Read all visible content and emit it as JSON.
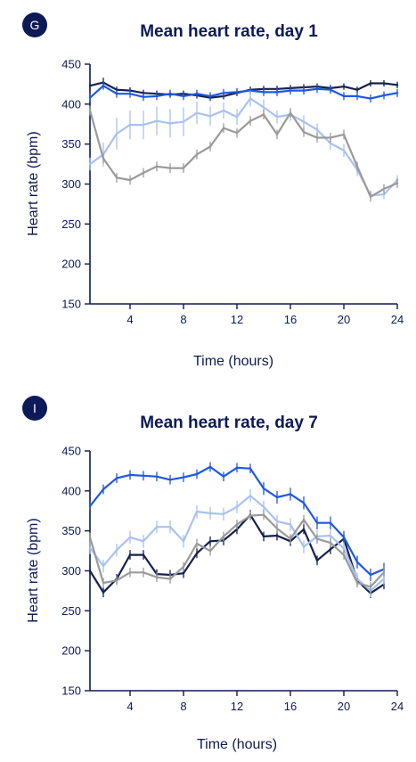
{
  "colors": {
    "axis": "#0d1a57",
    "navy": "#14214f",
    "blue": "#1f57e0",
    "light_blue": "#a9c1f2",
    "gray": "#9a9a9a"
  },
  "chart_data": [
    {
      "panel": "G",
      "type": "line",
      "title": "Mean heart rate, day 1",
      "xlabel": "Time (hours)",
      "ylabel": "Heart rate (bpm)",
      "xlim": [
        1,
        24
      ],
      "ylim": [
        150,
        450
      ],
      "xticks": [
        4,
        8,
        12,
        16,
        20,
        24
      ],
      "yticks": [
        150,
        200,
        250,
        300,
        350,
        400,
        450
      ],
      "x": [
        1,
        2,
        3,
        4,
        5,
        6,
        7,
        8,
        9,
        10,
        11,
        12,
        13,
        14,
        15,
        16,
        17,
        18,
        19,
        20,
        21,
        22,
        23,
        24
      ],
      "series": [
        {
          "color": "#14214f",
          "values": [
            423,
            427,
            418,
            417,
            414,
            413,
            412,
            413,
            411,
            408,
            410,
            414,
            418,
            419,
            419,
            420,
            421,
            422,
            420,
            422,
            418,
            426,
            426,
            424
          ],
          "err": [
            4,
            6,
            4,
            4,
            4,
            4,
            4,
            4,
            4,
            4,
            4,
            4,
            4,
            4,
            4,
            4,
            4,
            4,
            4,
            4,
            4,
            4,
            4,
            4
          ]
        },
        {
          "color": "#1f57e0",
          "values": [
            408,
            423,
            413,
            413,
            409,
            410,
            413,
            410,
            413,
            410,
            414,
            415,
            417,
            415,
            415,
            417,
            417,
            419,
            418,
            410,
            410,
            407,
            411,
            414
          ],
          "err": [
            5,
            5,
            5,
            5,
            5,
            5,
            5,
            5,
            5,
            5,
            5,
            5,
            5,
            5,
            5,
            5,
            5,
            5,
            5,
            5,
            5,
            5,
            5,
            5
          ]
        },
        {
          "color": "#a9c1f2",
          "values": [
            325,
            337,
            363,
            374,
            374,
            379,
            376,
            378,
            389,
            385,
            392,
            384,
            407,
            396,
            384,
            387,
            378,
            368,
            351,
            342,
            318,
            286,
            287,
            305
          ],
          "err": [
            8,
            15,
            20,
            18,
            18,
            18,
            18,
            18,
            14,
            12,
            10,
            10,
            10,
            10,
            8,
            8,
            8,
            8,
            8,
            8,
            8,
            6,
            6,
            6
          ]
        },
        {
          "color": "#9a9a9a",
          "values": [
            392,
            332,
            308,
            305,
            314,
            322,
            320,
            320,
            337,
            347,
            370,
            364,
            379,
            387,
            362,
            389,
            365,
            358,
            358,
            362,
            322,
            284,
            294,
            301
          ],
          "err": [
            6,
            6,
            6,
            6,
            6,
            6,
            6,
            6,
            6,
            6,
            6,
            6,
            6,
            6,
            6,
            6,
            6,
            6,
            6,
            6,
            6,
            6,
            6,
            6
          ]
        }
      ]
    },
    {
      "panel": "I",
      "type": "line",
      "title": "Mean heart rate, day 7",
      "xlabel": "Time (hours)",
      "ylabel": "Heart rate (bpm)",
      "xlim": [
        1,
        24
      ],
      "ylim": [
        150,
        450
      ],
      "xticks": [
        4,
        8,
        12,
        16,
        20,
        24
      ],
      "yticks": [
        150,
        200,
        250,
        300,
        350,
        400,
        450
      ],
      "x": [
        1,
        2,
        3,
        4,
        5,
        6,
        7,
        8,
        9,
        10,
        11,
        12,
        13,
        14,
        15,
        16,
        17,
        18,
        19,
        20,
        21,
        22,
        23
      ],
      "series": [
        {
          "color": "#14214f",
          "values": [
            300,
            273,
            290,
            320,
            320,
            296,
            295,
            297,
            322,
            337,
            338,
            352,
            370,
            343,
            344,
            337,
            352,
            313,
            327,
            340,
            288,
            272,
            283
          ],
          "err": [
            6,
            6,
            6,
            6,
            6,
            6,
            6,
            6,
            6,
            6,
            6,
            6,
            6,
            6,
            6,
            6,
            6,
            6,
            6,
            6,
            6,
            6,
            6
          ]
        },
        {
          "color": "#1f57e0",
          "values": [
            381,
            402,
            416,
            420,
            419,
            418,
            414,
            417,
            421,
            430,
            418,
            429,
            428,
            403,
            392,
            396,
            385,
            360,
            360,
            342,
            311,
            295,
            302
          ],
          "err": [
            5,
            6,
            6,
            6,
            6,
            6,
            6,
            6,
            6,
            6,
            6,
            6,
            6,
            8,
            8,
            8,
            8,
            8,
            8,
            8,
            8,
            8,
            8
          ]
        },
        {
          "color": "#a9c1f2",
          "values": [
            329,
            306,
            326,
            342,
            337,
            355,
            355,
            337,
            374,
            372,
            371,
            380,
            394,
            380,
            362,
            358,
            330,
            343,
            344,
            328,
            290,
            275,
            290
          ],
          "err": [
            8,
            8,
            8,
            8,
            8,
            8,
            8,
            8,
            8,
            8,
            8,
            8,
            8,
            8,
            8,
            8,
            8,
            8,
            8,
            8,
            8,
            8,
            8
          ]
        },
        {
          "color": "#9a9a9a",
          "values": [
            342,
            285,
            288,
            298,
            298,
            292,
            290,
            305,
            334,
            325,
            343,
            358,
            369,
            370,
            353,
            340,
            364,
            340,
            335,
            320,
            285,
            280,
            298
          ],
          "err": [
            6,
            6,
            6,
            6,
            6,
            6,
            6,
            6,
            6,
            6,
            6,
            6,
            6,
            6,
            6,
            6,
            6,
            6,
            6,
            6,
            6,
            6,
            6
          ]
        }
      ]
    }
  ]
}
